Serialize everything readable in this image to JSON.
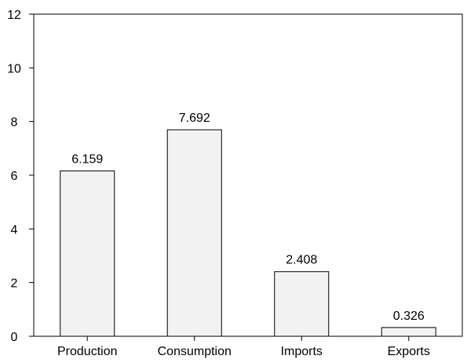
{
  "chart_data": {
    "type": "bar",
    "title": "",
    "xlabel": "",
    "ylabel": "",
    "categories": [
      "Production",
      "Consumption",
      "Imports",
      "Exports"
    ],
    "values": [
      6.159,
      7.692,
      2.408,
      0.326
    ],
    "value_labels": [
      "6.159",
      "7.692",
      "2.408",
      "0.326"
    ],
    "ylim": [
      0,
      12
    ],
    "yticks": [
      0,
      2,
      4,
      6,
      8,
      10,
      12
    ],
    "grid": false,
    "legend": "none",
    "bar_fill": "#f2f2f2",
    "bar_stroke": "#000000"
  }
}
